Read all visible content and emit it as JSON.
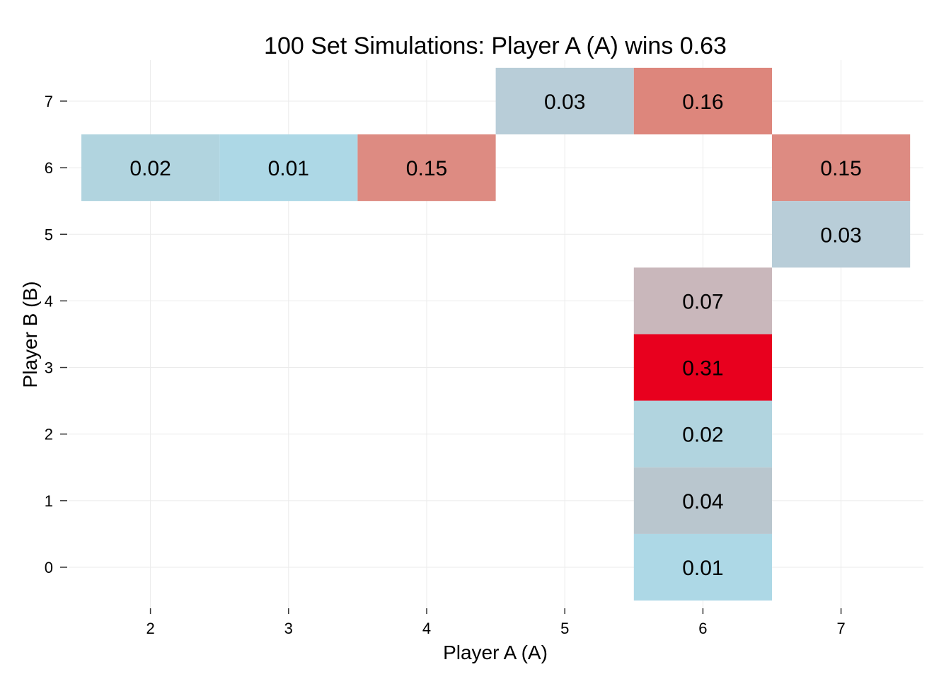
{
  "chart_data": {
    "type": "heatmap",
    "title": "100 Set Simulations: Player A (A) wins 0.63",
    "xlabel": "Player A (A)",
    "ylabel": "Player B (B)",
    "x_ticks": [
      2,
      3,
      4,
      5,
      6,
      7
    ],
    "y_ticks": [
      0,
      1,
      2,
      3,
      4,
      5,
      6,
      7
    ],
    "xlim": [
      1.5,
      7.5
    ],
    "ylim": [
      -0.5,
      7.5
    ],
    "grid": true,
    "legend": "none",
    "color_scale": {
      "low": "#add8e6",
      "high": "#e8001e",
      "min_value": 0.01,
      "max_value": 0.31
    },
    "cells": [
      {
        "x": 2,
        "y": 6,
        "value": 0.02,
        "label": "0.02",
        "color": "#b1d4df"
      },
      {
        "x": 3,
        "y": 6,
        "value": 0.01,
        "label": "0.01",
        "color": "#add8e6"
      },
      {
        "x": 4,
        "y": 6,
        "value": 0.15,
        "label": "0.15",
        "color": "#dd8b82"
      },
      {
        "x": 5,
        "y": 7,
        "value": 0.03,
        "label": "0.03",
        "color": "#b8cdd8"
      },
      {
        "x": 6,
        "y": 7,
        "value": 0.16,
        "label": "0.16",
        "color": "#dd867c"
      },
      {
        "x": 7,
        "y": 6,
        "value": 0.15,
        "label": "0.15",
        "color": "#dd8b82"
      },
      {
        "x": 7,
        "y": 5,
        "value": 0.03,
        "label": "0.03",
        "color": "#b8cdd8"
      },
      {
        "x": 6,
        "y": 4,
        "value": 0.07,
        "label": "0.07",
        "color": "#c9b7bb"
      },
      {
        "x": 6,
        "y": 3,
        "value": 0.31,
        "label": "0.31",
        "color": "#e8001e"
      },
      {
        "x": 6,
        "y": 2,
        "value": 0.02,
        "label": "0.02",
        "color": "#b1d4df"
      },
      {
        "x": 6,
        "y": 1,
        "value": 0.04,
        "label": "0.04",
        "color": "#b9c6ce"
      },
      {
        "x": 6,
        "y": 0,
        "value": 0.01,
        "label": "0.01",
        "color": "#add8e6"
      }
    ]
  }
}
